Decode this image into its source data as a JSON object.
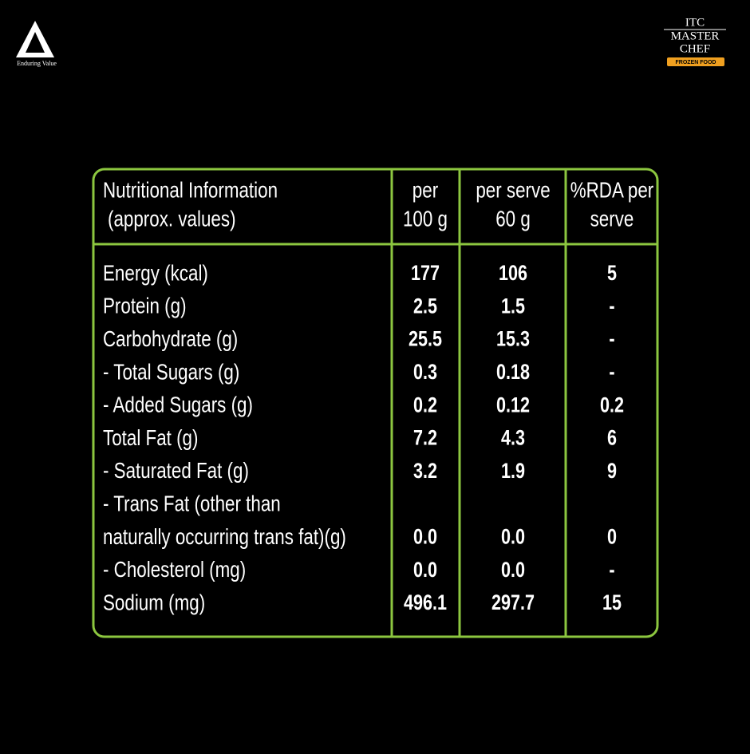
{
  "logos": {
    "itc": {
      "mark": "ITC",
      "tagline": "Enduring Value"
    },
    "masterchef": {
      "lines": [
        "ITC",
        "MASTER",
        "CHEF"
      ],
      "banner": "FROZEN FOOD"
    }
  },
  "table": {
    "header": [
      [
        "Nutritional Information",
        "(approx. values)"
      ],
      [
        "per",
        "100 g"
      ],
      [
        "per serve",
        "60 g"
      ],
      [
        "%RDA per",
        "serve"
      ]
    ],
    "rows": [
      {
        "label": [
          "Energy (kcal)"
        ],
        "values": [
          "177",
          "106",
          "5"
        ]
      },
      {
        "label": [
          "Protein (g)"
        ],
        "values": [
          "2.5",
          "1.5",
          "-"
        ]
      },
      {
        "label": [
          "Carbohydrate (g)"
        ],
        "values": [
          "25.5",
          "15.3",
          "-"
        ]
      },
      {
        "label": [
          "- Total Sugars (g)"
        ],
        "values": [
          "0.3",
          "0.18",
          "-"
        ]
      },
      {
        "label": [
          "- Added Sugars (g)"
        ],
        "values": [
          "0.2",
          "0.12",
          "0.2"
        ]
      },
      {
        "label": [
          "Total Fat (g)"
        ],
        "values": [
          "7.2",
          "4.3",
          "6"
        ]
      },
      {
        "label": [
          "- Saturated Fat (g)"
        ],
        "values": [
          "3.2",
          "1.9",
          "9"
        ]
      },
      {
        "label": [
          "- Trans Fat (other than",
          "naturally occurring trans fat)(g)"
        ],
        "values": [
          "0.0",
          "0.0",
          "0"
        ]
      },
      {
        "label": [
          "- Cholesterol (mg)"
        ],
        "values": [
          "0.0",
          "0.0",
          "-"
        ]
      },
      {
        "label": [
          "Sodium (mg)"
        ],
        "values": [
          "496.1",
          "297.7",
          "15"
        ]
      }
    ]
  }
}
